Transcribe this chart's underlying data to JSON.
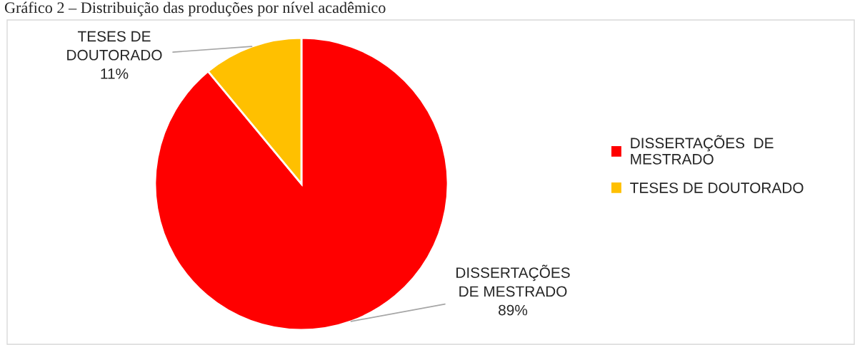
{
  "chart_data": {
    "type": "pie",
    "title": "Gráfico 2 – Distribuição das produções por nível acadêmico",
    "categories": [
      "DISSERTAÇÕES  DE MESTRADO",
      "TESES DE DOUTORADO"
    ],
    "values": [
      89,
      11
    ],
    "colors": [
      "#ff0000",
      "#ffc000"
    ],
    "value_labels": [
      "DISSERTAÇÕES\nDE MESTRADO\n89%",
      "TESES DE\nDOUTORADO\n11%"
    ],
    "legend": "right"
  }
}
